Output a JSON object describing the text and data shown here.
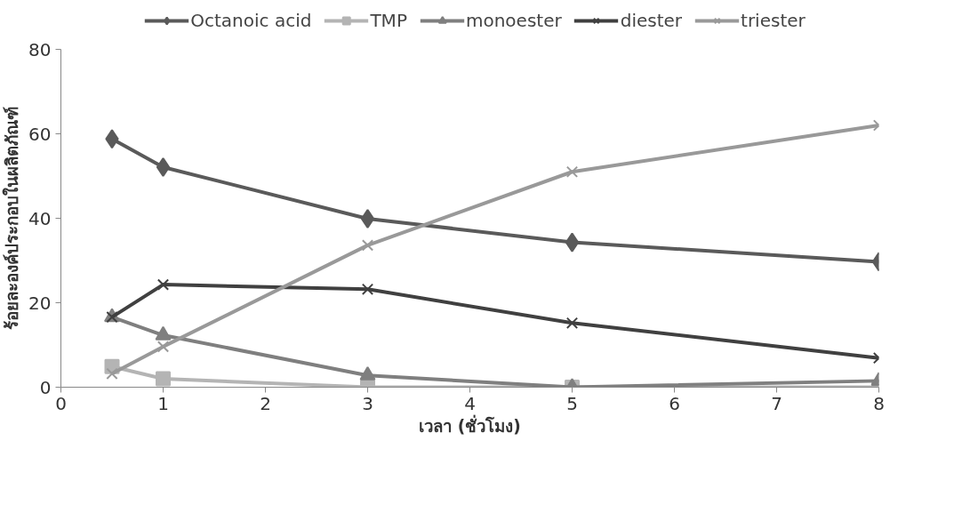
{
  "chart_data": {
    "type": "line",
    "xlabel": "เวลา (ชั่วโมง)",
    "ylabel": "ร้อยละองค์ประกอบในผลิตภัณฑ์",
    "x": [
      0.5,
      1,
      3,
      5,
      8
    ],
    "series": [
      {
        "name": "Octanoic acid",
        "color": "#5a5a5a",
        "marker": "diamond",
        "values": [
          58.8,
          52.1,
          39.9,
          34.3,
          29.7
        ]
      },
      {
        "name": "TMP",
        "color": "#b4b4b4",
        "marker": "square",
        "values": [
          4.9,
          2.0,
          0,
          0,
          0
        ]
      },
      {
        "name": "monoester",
        "color": "#7f7f7f",
        "marker": "triangle",
        "values": [
          16.6,
          12.3,
          2.8,
          0,
          1.5
        ]
      },
      {
        "name": "diester",
        "color": "#404040",
        "marker": "cross",
        "values": [
          16.6,
          24.3,
          23.2,
          15.2,
          6.9
        ]
      },
      {
        "name": "triester",
        "color": "#999999",
        "marker": "cross",
        "values": [
          3.2,
          9.6,
          33.6,
          51,
          62
        ]
      }
    ],
    "xlim": [
      0,
      8
    ],
    "xticks": [
      0,
      1,
      2,
      3,
      4,
      5,
      6,
      7,
      8
    ],
    "ylim": [
      0,
      80
    ],
    "yticks": [
      0,
      20,
      40,
      60,
      80
    ],
    "grid": false,
    "legend": "top",
    "line_style": "solid"
  }
}
